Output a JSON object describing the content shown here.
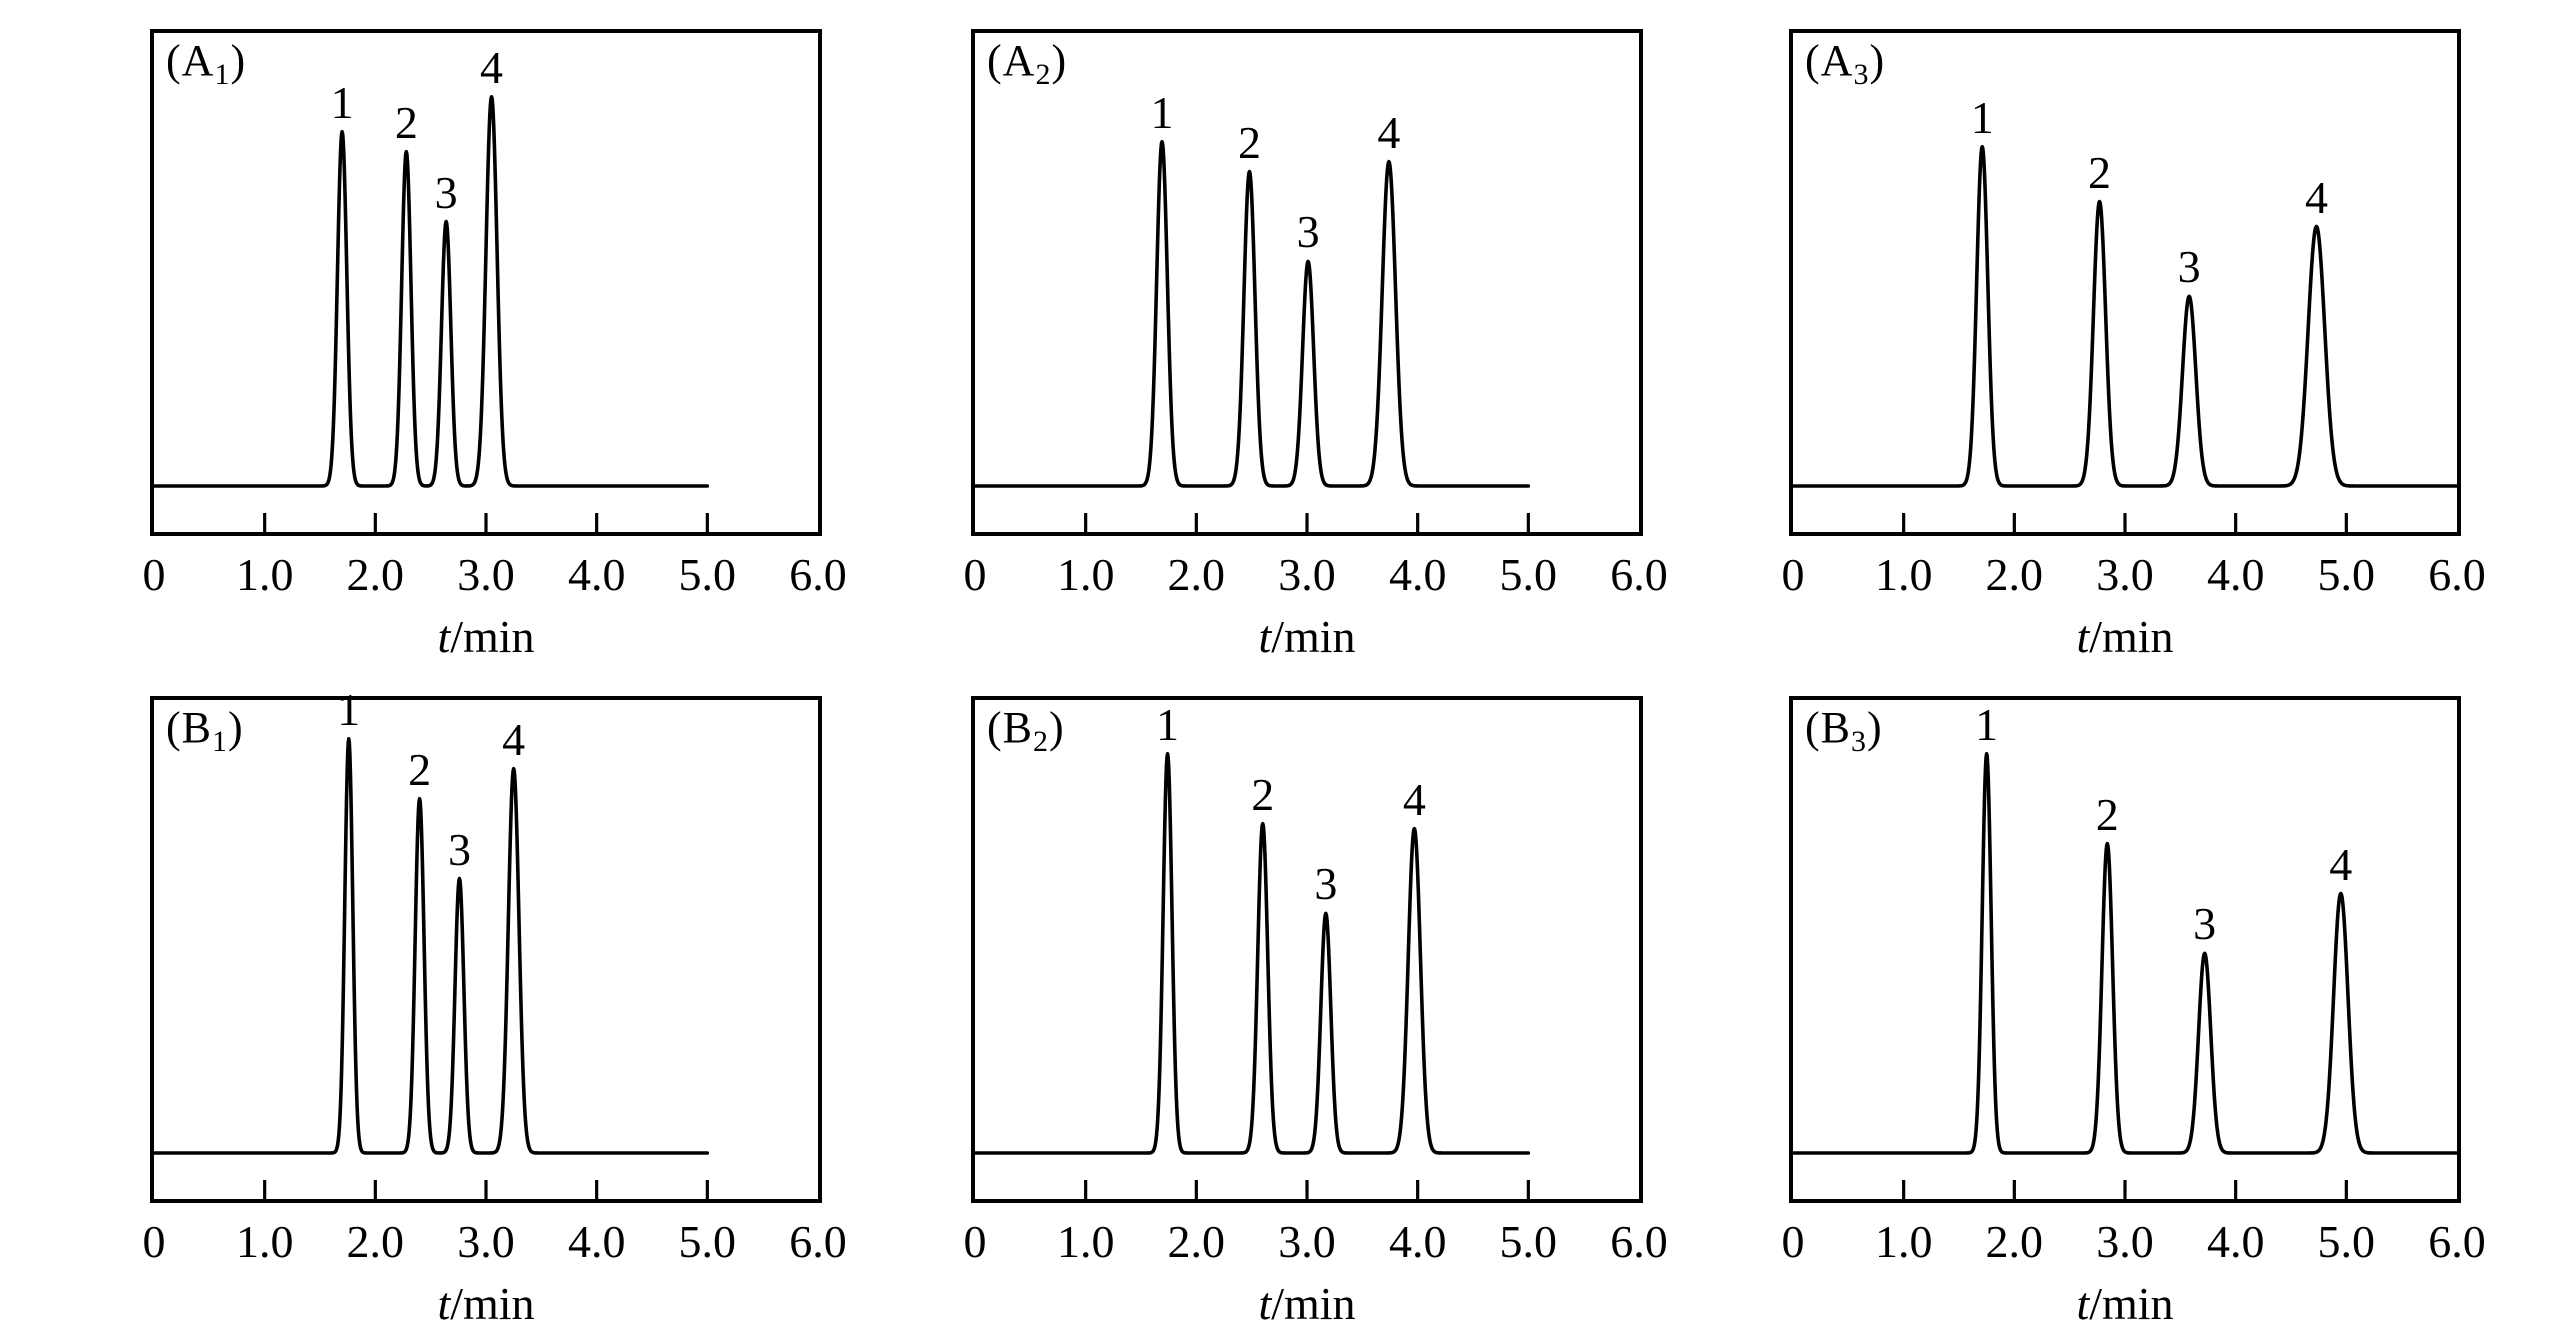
{
  "chart_data": {
    "type": "line",
    "layout": "2x3 grid of chromatogram panels",
    "grid": {
      "rows": 2,
      "cols": 3
    },
    "axis": {
      "xlabel_italic": "t",
      "xlabel_rest": "/min",
      "xlim": [
        0,
        6
      ],
      "tick_values": [
        0,
        1.0,
        2.0,
        3.0,
        4.0,
        5.0,
        6.0
      ],
      "tick_labels": [
        "0",
        "1.0",
        "2.0",
        "3.0",
        "4.0",
        "5.0",
        "6.0"
      ],
      "grid_lines": "off",
      "y_axis": "none (unlabeled detector response)"
    },
    "line_color": "#000000",
    "background": "#ffffff",
    "panels": [
      {
        "name": "A1",
        "label": {
          "prefix": "(A",
          "sub": "1",
          "suffix": ")"
        },
        "trace_start": 0,
        "trace_end": 5.0,
        "peaks": [
          {
            "label": "1",
            "t_min": 1.7,
            "rel_height": 0.71,
            "sigma_min": 0.042
          },
          {
            "label": "2",
            "t_min": 2.28,
            "rel_height": 0.67,
            "sigma_min": 0.042
          },
          {
            "label": "3",
            "t_min": 2.64,
            "rel_height": 0.53,
            "sigma_min": 0.042
          },
          {
            "label": "4",
            "t_min": 3.05,
            "rel_height": 0.78,
            "sigma_min": 0.05
          }
        ]
      },
      {
        "name": "A2",
        "label": {
          "prefix": "(A",
          "sub": "2",
          "suffix": ")"
        },
        "trace_start": 0,
        "trace_end": 5.0,
        "peaks": [
          {
            "label": "1",
            "t_min": 1.69,
            "rel_height": 0.69,
            "sigma_min": 0.048
          },
          {
            "label": "2",
            "t_min": 2.48,
            "rel_height": 0.63,
            "sigma_min": 0.05
          },
          {
            "label": "3",
            "t_min": 3.01,
            "rel_height": 0.45,
            "sigma_min": 0.05
          },
          {
            "label": "4",
            "t_min": 3.74,
            "rel_height": 0.65,
            "sigma_min": 0.06
          }
        ]
      },
      {
        "name": "A3",
        "label": {
          "prefix": "(A",
          "sub": "3",
          "suffix": ")"
        },
        "trace_start": 0,
        "trace_end": 6.0,
        "peaks": [
          {
            "label": "1",
            "t_min": 1.71,
            "rel_height": 0.68,
            "sigma_min": 0.05
          },
          {
            "label": "2",
            "t_min": 2.77,
            "rel_height": 0.57,
            "sigma_min": 0.055
          },
          {
            "label": "3",
            "t_min": 3.58,
            "rel_height": 0.38,
            "sigma_min": 0.06
          },
          {
            "label": "4",
            "t_min": 4.73,
            "rel_height": 0.52,
            "sigma_min": 0.075
          }
        ]
      },
      {
        "name": "B1",
        "label": {
          "prefix": "(B",
          "sub": "1",
          "suffix": ")"
        },
        "trace_start": 0,
        "trace_end": 5.0,
        "peaks": [
          {
            "label": "1",
            "t_min": 1.76,
            "rel_height": 0.83,
            "sigma_min": 0.036
          },
          {
            "label": "2",
            "t_min": 2.4,
            "rel_height": 0.71,
            "sigma_min": 0.04
          },
          {
            "label": "3",
            "t_min": 2.76,
            "rel_height": 0.55,
            "sigma_min": 0.04
          },
          {
            "label": "4",
            "t_min": 3.25,
            "rel_height": 0.77,
            "sigma_min": 0.048
          }
        ]
      },
      {
        "name": "B2",
        "label": {
          "prefix": "(B",
          "sub": "2",
          "suffix": ")"
        },
        "trace_start": 0,
        "trace_end": 5.0,
        "peaks": [
          {
            "label": "1",
            "t_min": 1.74,
            "rel_height": 0.8,
            "sigma_min": 0.04
          },
          {
            "label": "2",
            "t_min": 2.6,
            "rel_height": 0.66,
            "sigma_min": 0.045
          },
          {
            "label": "3",
            "t_min": 3.17,
            "rel_height": 0.48,
            "sigma_min": 0.045
          },
          {
            "label": "4",
            "t_min": 3.97,
            "rel_height": 0.65,
            "sigma_min": 0.055
          }
        ]
      },
      {
        "name": "B3",
        "label": {
          "prefix": "(B",
          "sub": "3",
          "suffix": ")"
        },
        "trace_start": 0,
        "trace_end": 6.0,
        "peaks": [
          {
            "label": "1",
            "t_min": 1.75,
            "rel_height": 0.8,
            "sigma_min": 0.04
          },
          {
            "label": "2",
            "t_min": 2.84,
            "rel_height": 0.62,
            "sigma_min": 0.048
          },
          {
            "label": "3",
            "t_min": 3.72,
            "rel_height": 0.4,
            "sigma_min": 0.055
          },
          {
            "label": "4",
            "t_min": 4.95,
            "rel_height": 0.52,
            "sigma_min": 0.065
          }
        ]
      }
    ]
  }
}
